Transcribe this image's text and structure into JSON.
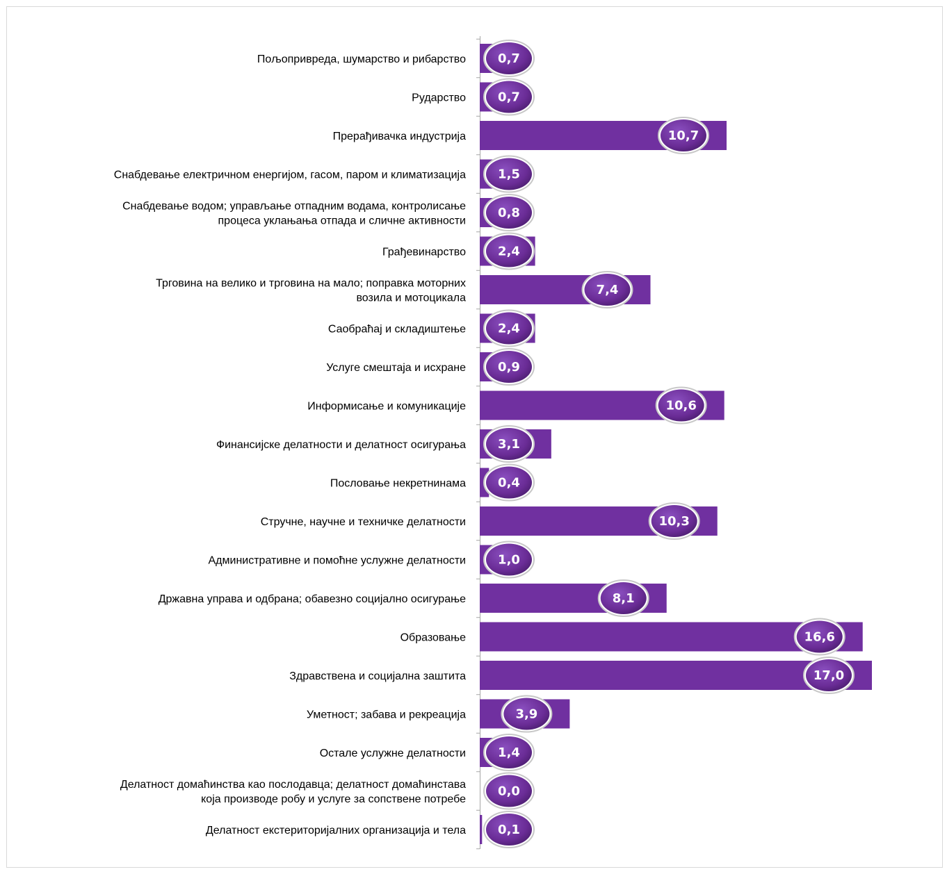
{
  "chart_data": {
    "type": "bar",
    "orientation": "horizontal",
    "categories": [
      [
        "Пољопривреда, шумарство и рибарство"
      ],
      [
        "Рударство"
      ],
      [
        "Прерађивачка индустрија"
      ],
      [
        "Снабдевање електричном енергијом, гасом, паром и климатизација"
      ],
      [
        "Снабдевање водом; управљање отпадним водама, контролисање",
        "процеса уклањања отпада и сличне активности"
      ],
      [
        "Грађевинарство"
      ],
      [
        "Трговина на велико и трговина на мало; поправка моторних",
        "возила и мотоцикала"
      ],
      [
        "Саобраћај и складиштење"
      ],
      [
        "Услуге смештаја и исхране"
      ],
      [
        "Информисање и комуникације"
      ],
      [
        "Финансијске делатности и делатност осигурања"
      ],
      [
        "Пословање некретнинама"
      ],
      [
        "Стручне, научне и техничке делатности"
      ],
      [
        "Административне и помоћне услужне делатности"
      ],
      [
        "Државна управа и одбрана; обавезно социјално осигурање"
      ],
      [
        "Образовање"
      ],
      [
        "Здравствена и социјална заштита"
      ],
      [
        "Уметност; забава и рекреација"
      ],
      [
        "Остале услужне делатности"
      ],
      [
        "Делатност домаћинства као послодавца; делатност домаћинстава",
        "која производе робу и услуге за сопствене потребе"
      ],
      [
        "Делатност екстериторијалних организација и тела"
      ]
    ],
    "values": [
      0.7,
      0.7,
      10.7,
      1.5,
      0.8,
      2.4,
      7.4,
      2.4,
      0.9,
      10.6,
      3.1,
      0.4,
      10.3,
      1.0,
      8.1,
      16.6,
      17.0,
      3.9,
      1.4,
      0.0,
      0.1
    ],
    "value_labels": [
      "0,7",
      "0,7",
      "10,7",
      "1,5",
      "0,8",
      "2,4",
      "7,4",
      "2,4",
      "0,9",
      "10,6",
      "3,1",
      "0,4",
      "10,3",
      "1,0",
      "8,1",
      "16,6",
      "17,0",
      "3,9",
      "1,4",
      "0,0",
      "0,1"
    ],
    "xlim": [
      0,
      17.0
    ],
    "bar_color": "#7030a0",
    "bubble_color": "#6a2c96",
    "bubble_border_color": "#c8c8c8",
    "grid": false,
    "legend": "none",
    "data_labels": true
  }
}
